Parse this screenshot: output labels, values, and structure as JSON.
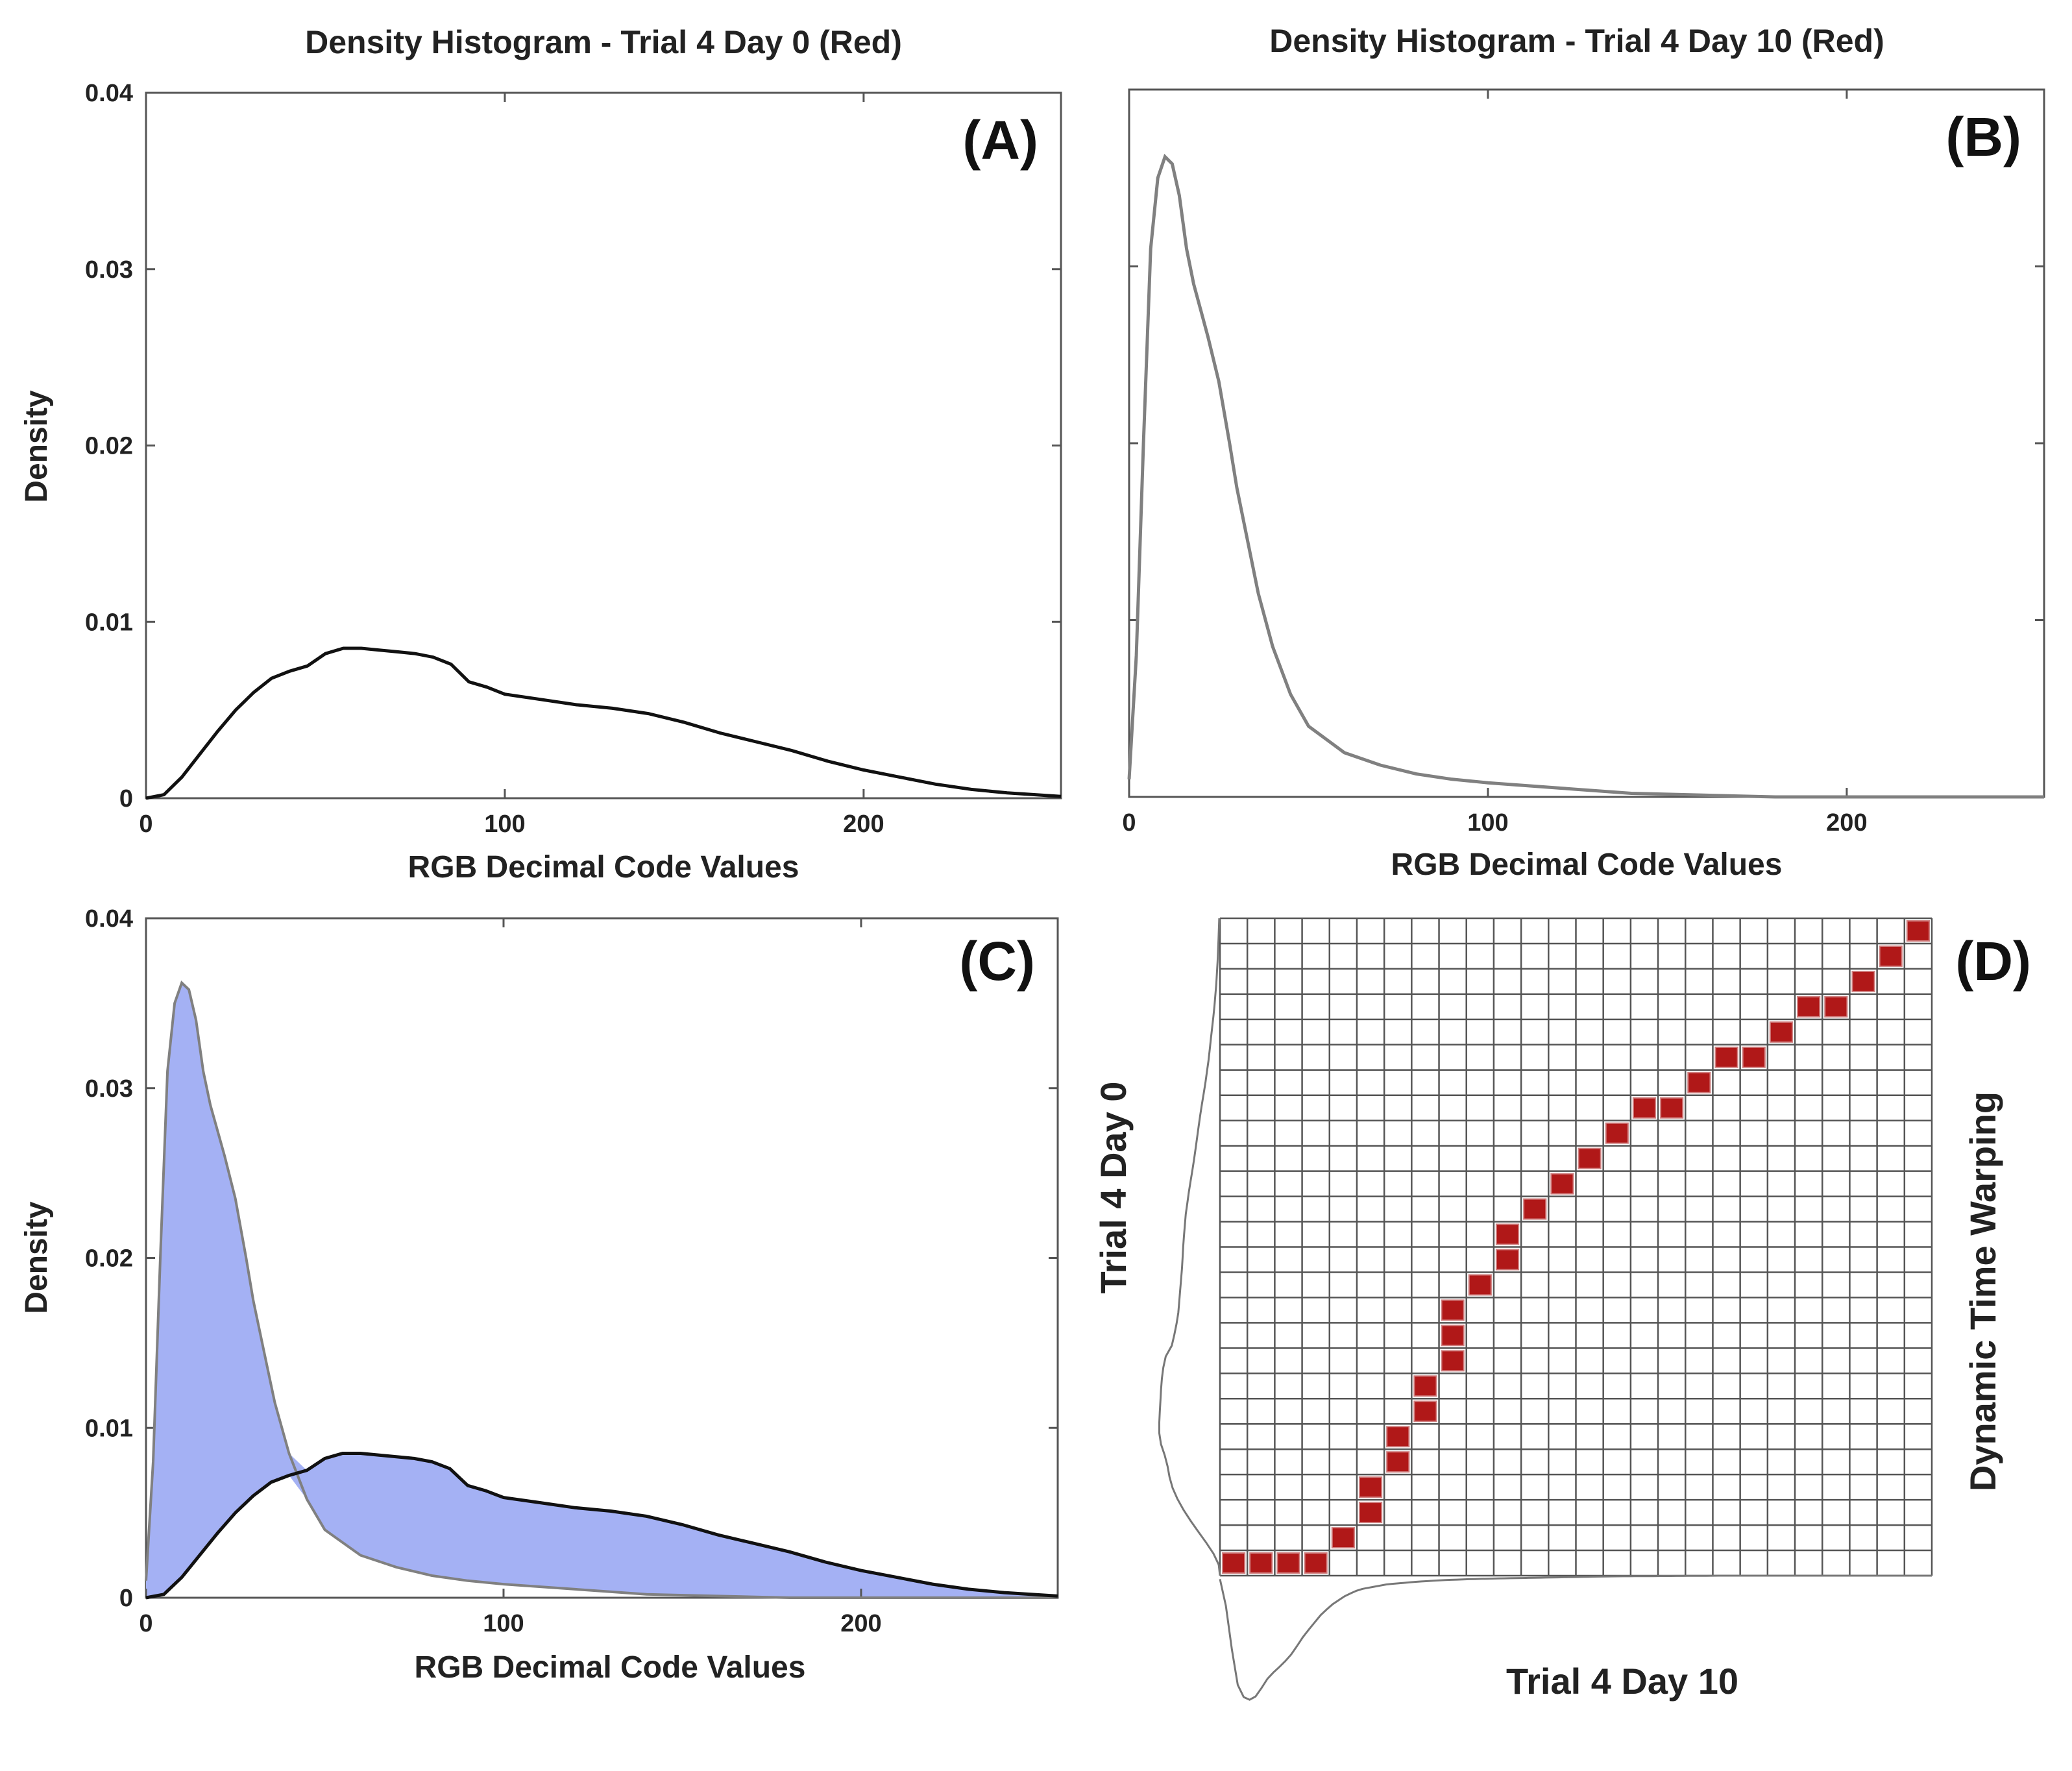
{
  "figure": {
    "colors": {
      "axis": "#555555",
      "day0": "#111111",
      "day10": "#808080",
      "fill": "#a4b1f4",
      "path": "#b01818",
      "grid": "#555555"
    }
  },
  "chart_data": [
    {
      "panel": "(A)",
      "type": "line",
      "title": "Density Histogram - Trial 4 Day 0 (Red)",
      "xlabel": "RGB Decimal Code Values",
      "ylabel": "Density",
      "xlim": [
        0,
        255
      ],
      "ylim": [
        0,
        0.04
      ],
      "xticks": [
        0,
        100,
        200
      ],
      "xtick_labels": [
        "0",
        "100",
        "200"
      ],
      "yticks": [
        0,
        0.01,
        0.02,
        0.03,
        0.04
      ],
      "ytick_labels": [
        "0",
        "0.01",
        "0.02",
        "0.03",
        "0.04"
      ],
      "series": [
        {
          "name": "Trial 4 Day 0",
          "x": [
            0,
            5,
            10,
            15,
            20,
            25,
            30,
            35,
            40,
            45,
            50,
            55,
            60,
            65,
            70,
            75,
            80,
            85,
            90,
            95,
            100,
            110,
            120,
            130,
            140,
            150,
            160,
            170,
            180,
            190,
            200,
            210,
            220,
            230,
            240,
            255
          ],
          "y": [
            0.0,
            0.0002,
            0.0012,
            0.0025,
            0.0038,
            0.005,
            0.006,
            0.0068,
            0.0072,
            0.0075,
            0.0082,
            0.0085,
            0.0085,
            0.0084,
            0.0083,
            0.0082,
            0.008,
            0.0076,
            0.0066,
            0.0063,
            0.0059,
            0.0056,
            0.0053,
            0.0051,
            0.0048,
            0.0043,
            0.0037,
            0.0032,
            0.0027,
            0.0021,
            0.0016,
            0.0012,
            0.0008,
            0.0005,
            0.0003,
            0.0001
          ]
        }
      ]
    },
    {
      "panel": "(B)",
      "type": "line",
      "title": "Density Histogram - Trial 4 Day 10 (Red)",
      "xlabel": "RGB Decimal Code Values",
      "ylabel": "",
      "xlim": [
        0,
        255
      ],
      "ylim": [
        0,
        0.04
      ],
      "xticks": [
        0,
        100,
        200
      ],
      "xtick_labels": [
        "0",
        "100",
        "200"
      ],
      "yticks": [
        0,
        0.01,
        0.02,
        0.03,
        0.04
      ],
      "ytick_labels": [],
      "series": [
        {
          "name": "Trial 4 Day 10",
          "x": [
            0,
            2,
            4,
            6,
            8,
            10,
            12,
            14,
            16,
            18,
            20,
            22,
            25,
            28,
            30,
            33,
            36,
            40,
            45,
            50,
            60,
            70,
            80,
            90,
            100,
            120,
            140,
            160,
            180,
            200,
            220,
            255
          ],
          "y": [
            0.001,
            0.008,
            0.02,
            0.031,
            0.035,
            0.0362,
            0.0358,
            0.034,
            0.031,
            0.029,
            0.0275,
            0.026,
            0.0235,
            0.02,
            0.0175,
            0.0145,
            0.0115,
            0.0085,
            0.0058,
            0.004,
            0.0025,
            0.0018,
            0.0013,
            0.001,
            0.0008,
            0.0005,
            0.0002,
            0.0001,
            0.0,
            0.0,
            0.0,
            0.0
          ]
        }
      ]
    },
    {
      "panel": "(C)",
      "type": "area",
      "title": "",
      "xlabel": "RGB Decimal Code Values",
      "ylabel": "Density",
      "xlim": [
        0,
        255
      ],
      "ylim": [
        0,
        0.04
      ],
      "xticks": [
        0,
        100,
        200
      ],
      "xtick_labels": [
        "0",
        "100",
        "200"
      ],
      "yticks": [
        0,
        0.01,
        0.02,
        0.03,
        0.04
      ],
      "ytick_labels": [
        "0",
        "0.01",
        "0.02",
        "0.03",
        "0.04"
      ],
      "note": "Shaded region between the Day 0 and Day 10 density curves",
      "series_refs": [
        "Trial 4 Day 0",
        "Trial 4 Day 10"
      ]
    },
    {
      "panel": "(D)",
      "type": "heatmap",
      "xlabel": "Trial 4 Day 10",
      "ylabel": "Trial 4 Day 0",
      "side_label": "Dynamic Time Warping",
      "grid_cols": 26,
      "grid_rows": 26,
      "warping_path": [
        [
          0,
          0
        ],
        [
          1,
          0
        ],
        [
          2,
          0
        ],
        [
          3,
          0
        ],
        [
          4,
          1
        ],
        [
          5,
          2
        ],
        [
          5,
          3
        ],
        [
          6,
          4
        ],
        [
          6,
          5
        ],
        [
          7,
          6
        ],
        [
          7,
          7
        ],
        [
          8,
          8
        ],
        [
          8,
          9
        ],
        [
          8,
          10
        ],
        [
          9,
          11
        ],
        [
          10,
          12
        ],
        [
          10,
          13
        ],
        [
          11,
          14
        ],
        [
          12,
          15
        ],
        [
          13,
          16
        ],
        [
          14,
          17
        ],
        [
          15,
          18
        ],
        [
          16,
          18
        ],
        [
          17,
          19
        ],
        [
          18,
          20
        ],
        [
          19,
          20
        ],
        [
          20,
          21
        ],
        [
          21,
          22
        ],
        [
          22,
          22
        ],
        [
          23,
          23
        ],
        [
          24,
          24
        ],
        [
          25,
          25
        ]
      ]
    }
  ]
}
